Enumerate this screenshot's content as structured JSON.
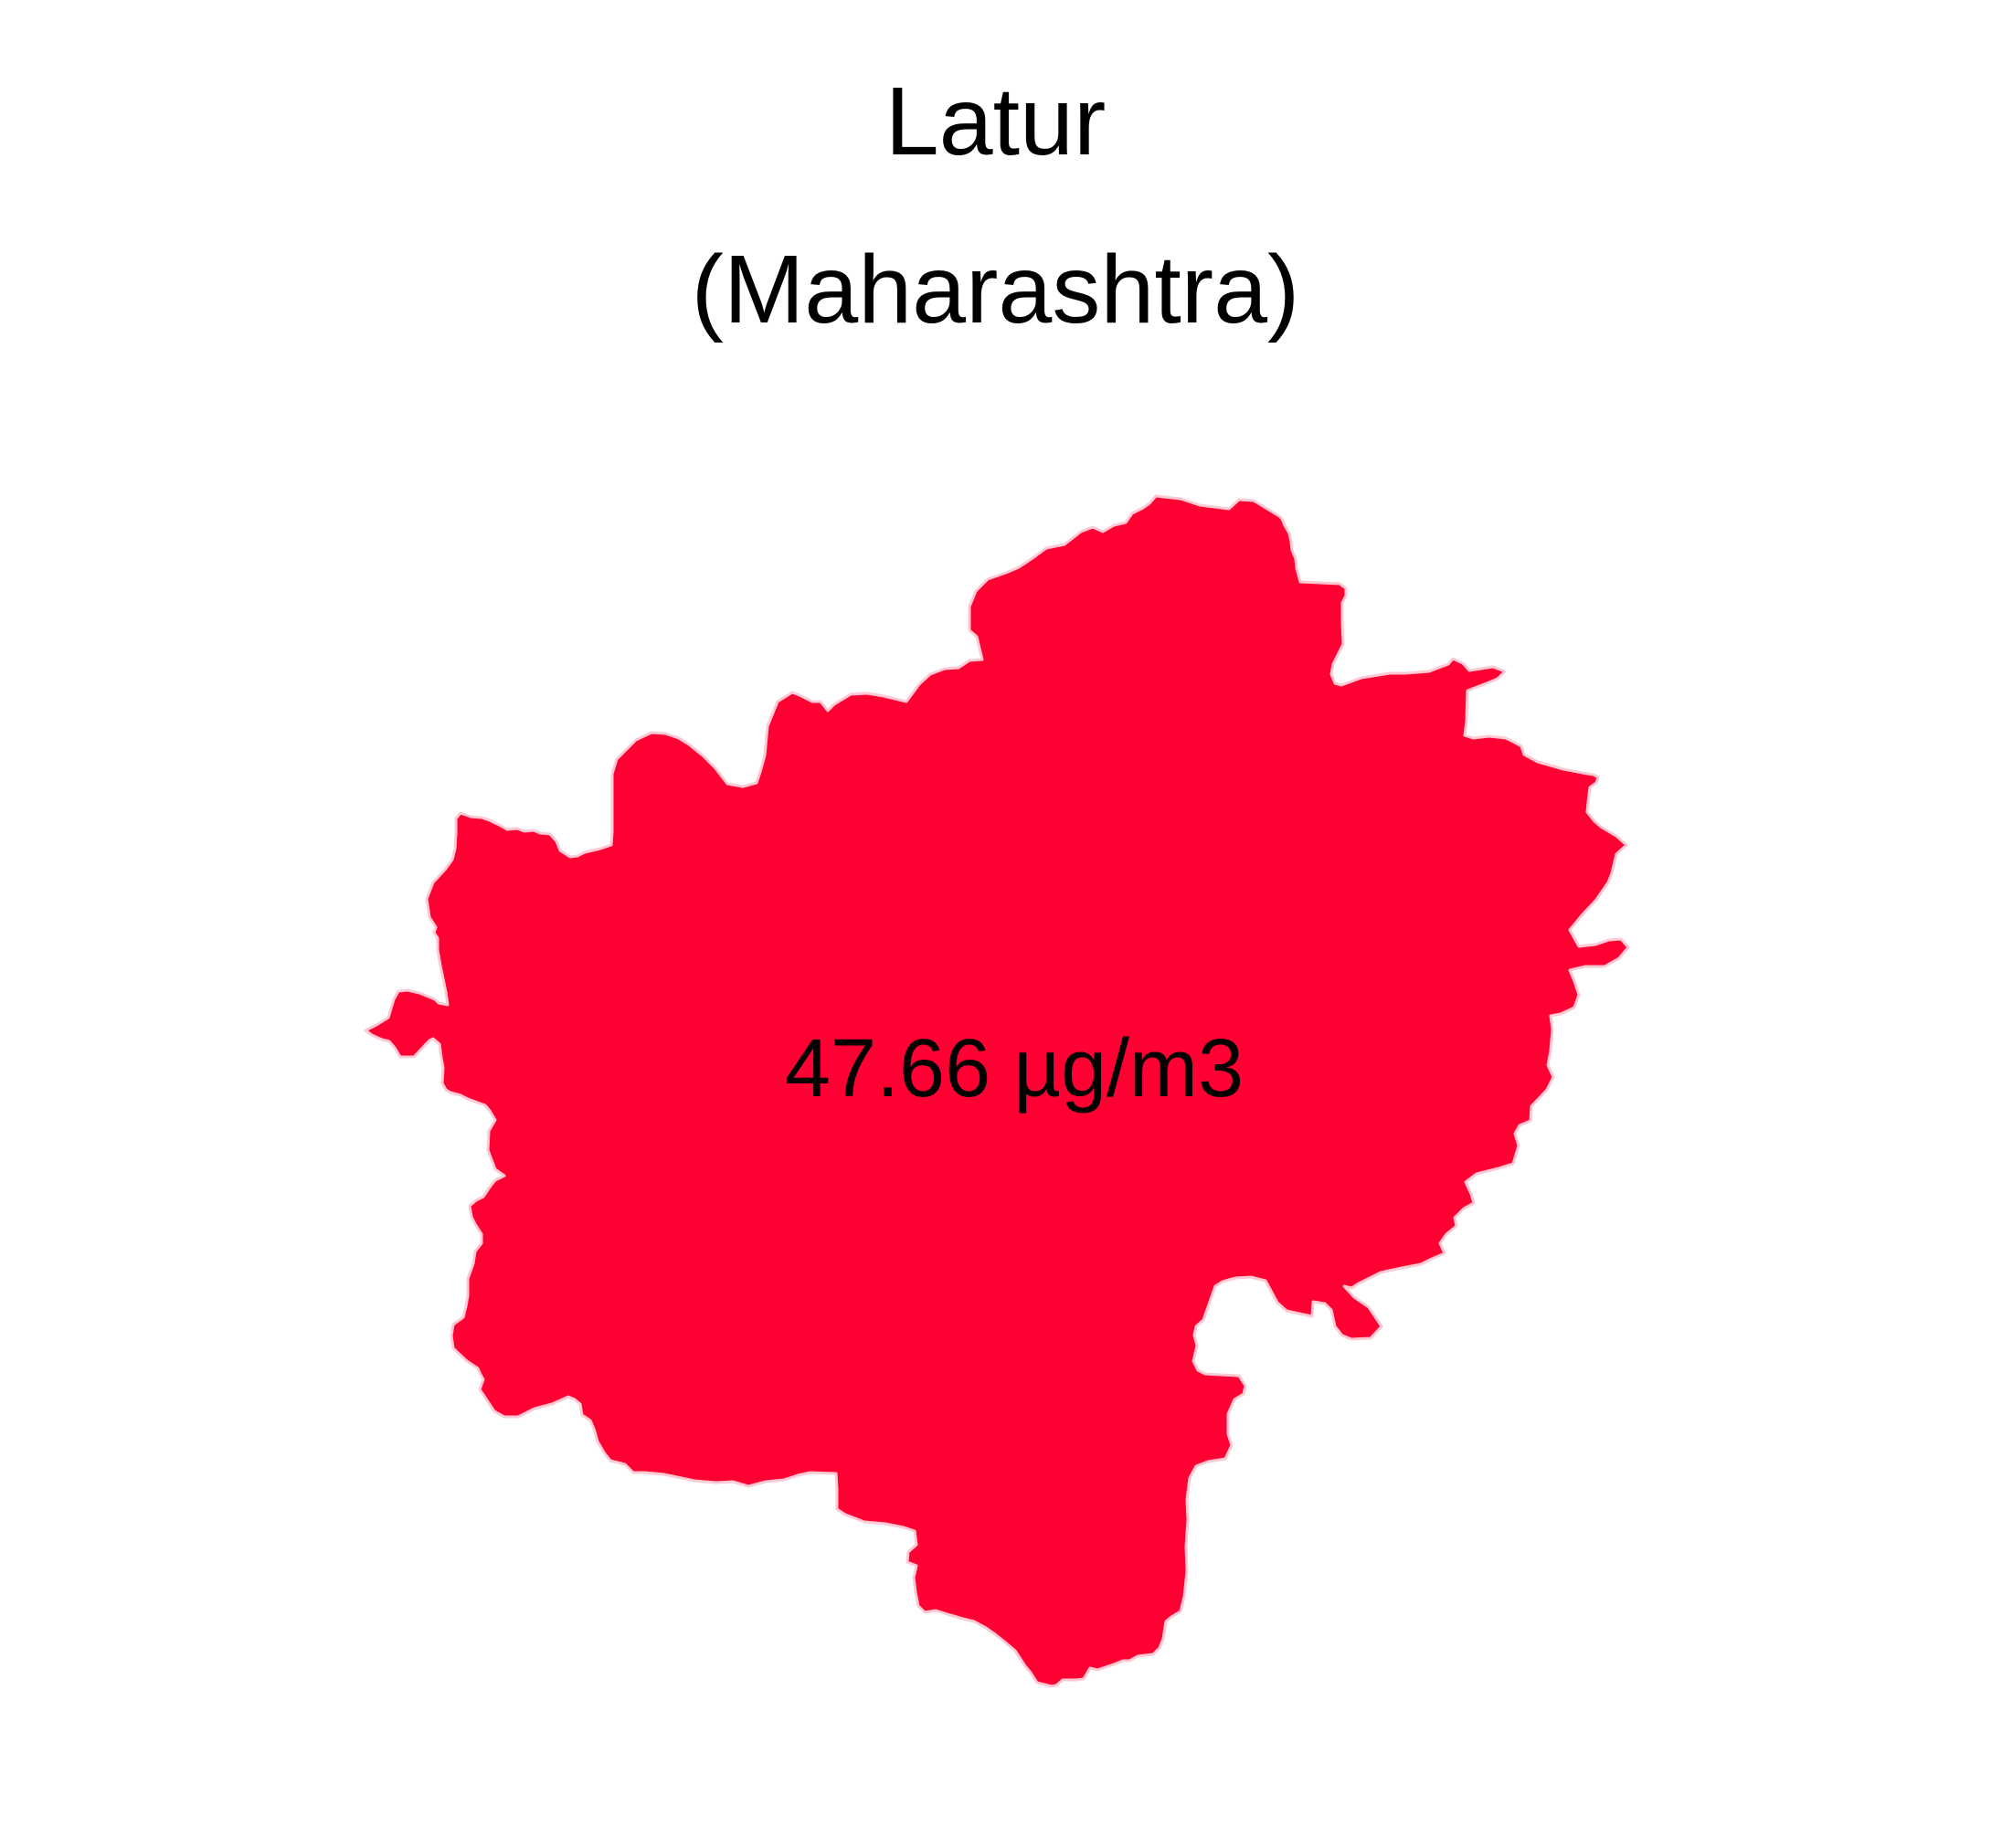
{
  "title": {
    "line1": "Latur",
    "line2": "(Maharashtra)"
  },
  "region": {
    "name": "Latur",
    "value_label": "47.66 µg/m3",
    "value": 47.66,
    "unit": "µg/m3",
    "fill_color": "#FF0033",
    "outline_color": "#FFC8D2"
  },
  "colors": {
    "background": "#FFFFFF",
    "text": "#000000"
  }
}
